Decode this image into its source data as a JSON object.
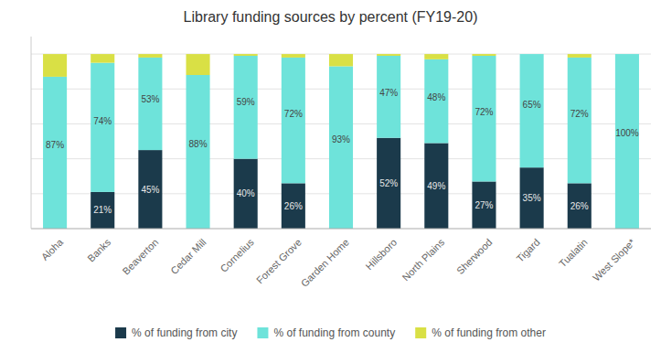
{
  "chart_data": {
    "type": "bar",
    "stacked": true,
    "title": "Library funding sources by percent (FY19-20)",
    "categories": [
      "Aloha",
      "Banks",
      "Beaverton",
      "Cedar Mill",
      "Cornelius",
      "Forest Grove",
      "Garden Home",
      "Hillsboro",
      "North Plains",
      "Sherwood",
      "Tigard",
      "Tualatin",
      "West Slope*"
    ],
    "series": [
      {
        "name": "% of funding from city",
        "color": "#1b3a4b",
        "values": [
          0,
          21,
          45,
          0,
          40,
          26,
          0,
          52,
          49,
          27,
          35,
          26,
          0
        ],
        "value_labels": [
          null,
          "21%",
          "45%",
          null,
          "40%",
          "26%",
          null,
          "52%",
          "49%",
          "27%",
          "35%",
          "26%",
          null
        ]
      },
      {
        "name": "% of funding from county",
        "color": "#6ee3da",
        "values": [
          87,
          74,
          53,
          88,
          59,
          72,
          93,
          47,
          48,
          72,
          65,
          72,
          100
        ],
        "value_labels": [
          "87%",
          "74%",
          "53%",
          "88%",
          "59%",
          "72%",
          "93%",
          "47%",
          "48%",
          "72%",
          "65%",
          "72%",
          "100%"
        ]
      },
      {
        "name": "% of funding from other",
        "color": "#d9e045",
        "values": [
          13,
          5,
          2,
          12,
          1,
          2,
          7,
          1,
          3,
          1,
          0,
          2,
          0
        ]
      }
    ],
    "ylim": [
      0,
      110
    ],
    "yticks": [
      20,
      40,
      60,
      80,
      100
    ],
    "grid": true,
    "legend": "bottom",
    "data_labels": true,
    "tick_labels": "x"
  }
}
